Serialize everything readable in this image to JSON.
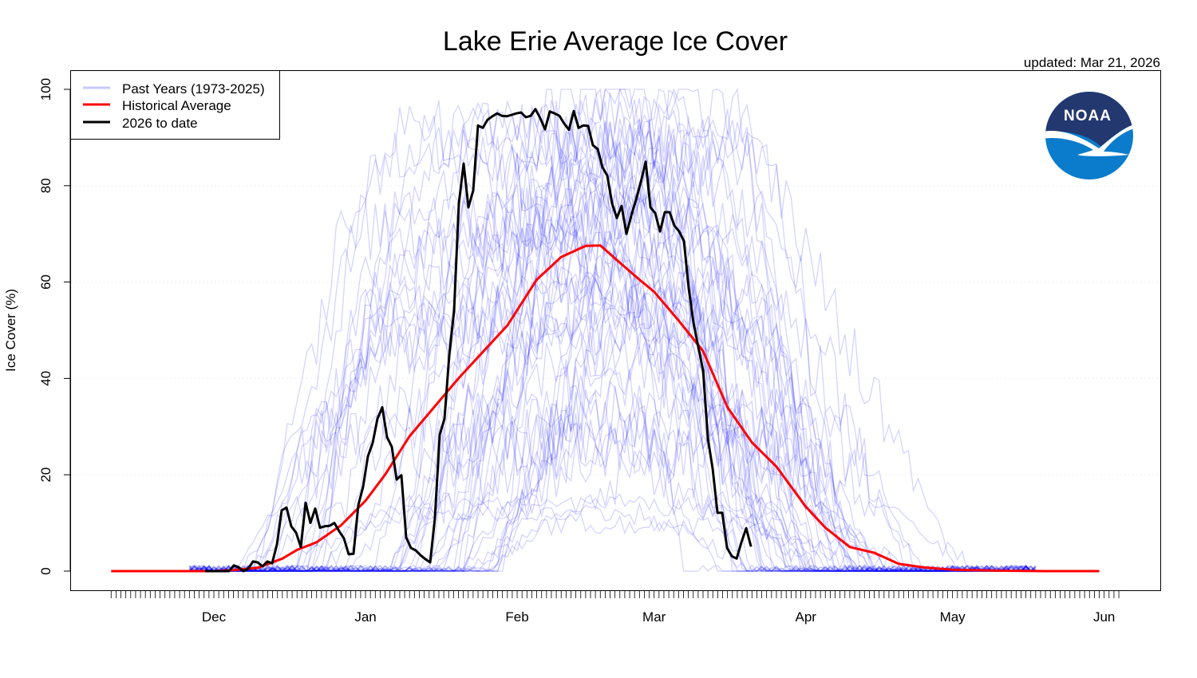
{
  "chart_data": {
    "type": "line",
    "title": "Lake Erie Average Ice Cover",
    "subtitle": "updated: Mar 21, 2026",
    "xlabel": "",
    "ylabel": "Ice Cover (%)",
    "ylim": [
      0,
      100
    ],
    "y_ticks": [
      "0",
      "20",
      "40",
      "60",
      "80",
      "100"
    ],
    "x_unit": "days since Dec 1",
    "x_range_days": [
      -21,
      185
    ],
    "x_month_ticks": [
      {
        "label": "Dec",
        "day": 0
      },
      {
        "label": "Jan",
        "day": 31
      },
      {
        "label": "Feb",
        "day": 62
      },
      {
        "label": "Mar",
        "day": 90
      },
      {
        "label": "Apr",
        "day": 121
      },
      {
        "label": "May",
        "day": 151
      },
      {
        "label": "Jun",
        "day": 182
      }
    ],
    "grid": true,
    "legend_position": "top-left",
    "legend": [
      {
        "label": "Past Years (1973-2025)",
        "color": "#c8c8ff"
      },
      {
        "label": "Historical Average",
        "color": "#ff0000"
      },
      {
        "label": "2026 to date",
        "color": "#000000"
      }
    ],
    "series": [
      {
        "name": "Historical Average",
        "color": "#ff0000",
        "points": [
          [
            -21,
            0
          ],
          [
            0,
            0
          ],
          [
            4,
            0.2
          ],
          [
            9,
            0.7
          ],
          [
            14,
            2.6
          ],
          [
            17,
            4.4
          ],
          [
            21,
            6
          ],
          [
            26,
            9.5
          ],
          [
            31,
            14.6
          ],
          [
            35,
            20
          ],
          [
            40,
            28
          ],
          [
            45,
            34
          ],
          [
            50,
            40
          ],
          [
            55,
            45.5
          ],
          [
            60,
            51
          ],
          [
            66,
            60.5
          ],
          [
            71,
            65.2
          ],
          [
            76,
            67.5
          ],
          [
            79,
            67.6
          ],
          [
            83,
            64
          ],
          [
            87,
            60.5
          ],
          [
            90,
            58
          ],
          [
            95,
            52
          ],
          [
            100,
            45.7
          ],
          [
            105,
            34
          ],
          [
            110,
            26.7
          ],
          [
            115,
            21.7
          ],
          [
            121,
            13.4
          ],
          [
            125,
            9
          ],
          [
            130,
            5
          ],
          [
            135,
            3.8
          ],
          [
            140,
            1.5
          ],
          [
            145,
            0.8
          ],
          [
            151,
            0.3
          ],
          [
            160,
            0.1
          ],
          [
            170,
            0
          ],
          [
            181,
            0
          ]
        ]
      },
      {
        "name": "2026 to date",
        "color": "#000000",
        "start_day": -1.8,
        "end_day": 109.8,
        "values": [
          0,
          0,
          0,
          0,
          0,
          0,
          1.2,
          0.8,
          0,
          0.5,
          2,
          1.8,
          1,
          2,
          1.6,
          5.5,
          12.6,
          13.2,
          9.3,
          8,
          5,
          14.2,
          10,
          13,
          9,
          9.3,
          9.4,
          10,
          8.3,
          6.8,
          3.5,
          3.6,
          13.7,
          17.5,
          23.8,
          26.6,
          31.6,
          34,
          27.8,
          25.8,
          19,
          19.9,
          7,
          4.8,
          4.3,
          3.3,
          2.5,
          1.8,
          11,
          28.3,
          31.6,
          44.9,
          54,
          76.3,
          84.6,
          75.5,
          79,
          92.5,
          92,
          93.7,
          94.4,
          95,
          94.5,
          94.4,
          94.7,
          95,
          95.2,
          94.2,
          94.5,
          95.9,
          94,
          91.7,
          95.4,
          95,
          94.5,
          92.9,
          91.6,
          95.5,
          92,
          92.5,
          92.4,
          88.4,
          87.6,
          83.8,
          82.1,
          76.3,
          73.3,
          75.8,
          70,
          73.8,
          77.1,
          80.8,
          85,
          75.5,
          74.3,
          70.5,
          74.5,
          74.5,
          71.7,
          70.5,
          68.5,
          58.6,
          51.5,
          46.5,
          41.6,
          27.5,
          21.2,
          12.1,
          12.1,
          4.8,
          3.1,
          2.6,
          6,
          8.9,
          5.1
        ]
      },
      {
        "name": "Past Years (1973-2025)",
        "color": "#0000ff",
        "count": 53,
        "approximate": true
      }
    ]
  },
  "logo": {
    "text": "NOAA"
  }
}
